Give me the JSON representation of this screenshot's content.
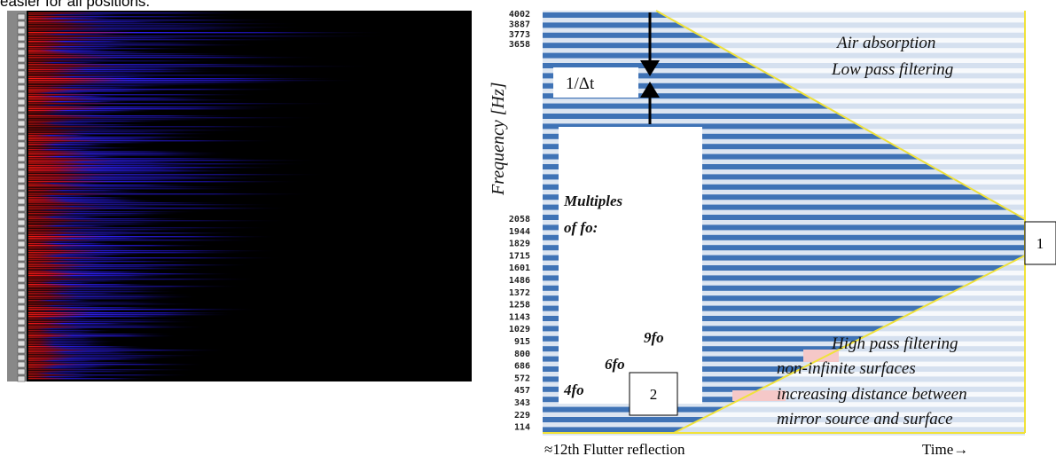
{
  "caption_fragment": "easier for all positions.",
  "figure": {
    "y_axis_label": "Frequency [Hz]",
    "frequency_ticks_top": [
      "4002",
      "3887",
      "3773",
      "3658"
    ],
    "frequency_ticks_bottom": [
      "2058",
      "1944",
      "1829",
      "1715",
      "1601",
      "1486",
      "1372",
      "1258",
      "1143",
      "1029",
      "915",
      "800",
      "686",
      "572",
      "457",
      "343",
      "229",
      "114"
    ],
    "annotations": {
      "air_absorption": "Air  absorption",
      "low_pass": "Low pass filtering",
      "delta_t": "1/Δt",
      "multiples_1": "Multiples",
      "multiples_2": "of fo:",
      "nine_fo": "9fo",
      "six_fo": "6fo",
      "four_fo": "4fo",
      "high_pass": "High pass filtering",
      "non_infinite": "non-infinite surfaces",
      "increasing": "increasing distance between",
      "mirror": "mirror source and surface"
    },
    "callouts": [
      "1",
      "2"
    ],
    "x_axis_label": "≈12th Flutter  reflection",
    "time_label": "Time→"
  }
}
